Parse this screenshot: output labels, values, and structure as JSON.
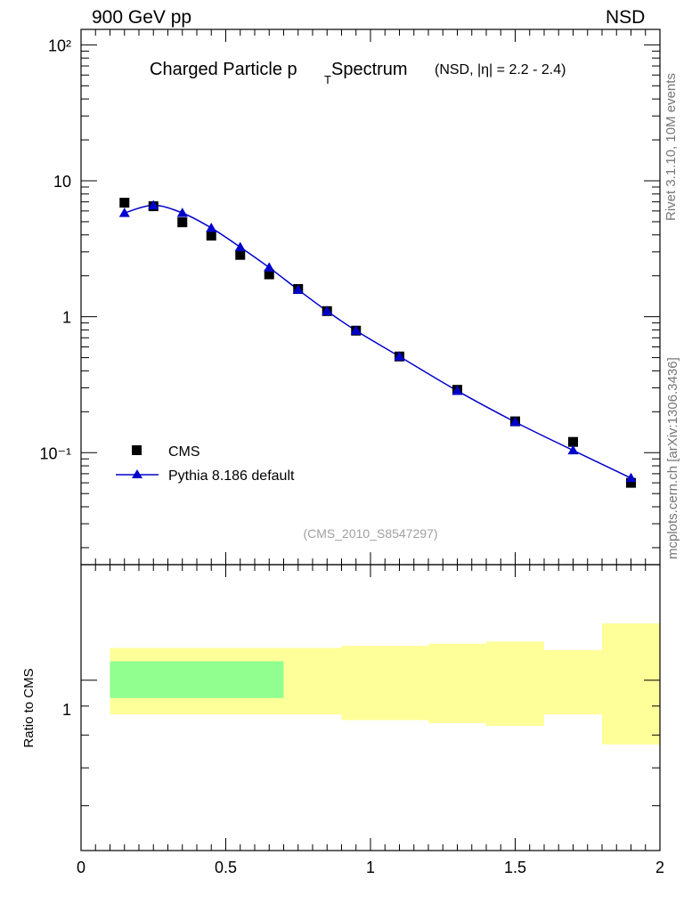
{
  "header": {
    "energy_label": "900 GeV pp",
    "process_label": "NSD"
  },
  "side_labels": {
    "rivet": "Rivet 3.1.10,  10M events",
    "source": "mcplots.cern.ch [arXiv:1306.3436]"
  },
  "colors": {
    "data": "#000000",
    "mc": "#0000cc",
    "band_mc": "#90ff90",
    "band_data": "#ffff99"
  },
  "chart_data": [
    {
      "type": "scatter",
      "panel": "main",
      "title_main": "Charged Particle p",
      "title_sub": "T",
      "title_main2": " Spectrum",
      "title_extra": "(NSD, |η| = 2.2 - 2.4)",
      "watermark": "(CMS_2010_S8547297)",
      "yscale": "log",
      "xlim": [
        0,
        2
      ],
      "ylim": [
        0.015,
        130
      ],
      "ytick_labels": [
        "10⁻¹",
        "1",
        "10",
        "10²"
      ],
      "legend_position": "bottom-left",
      "series": [
        {
          "name": "CMS",
          "marker": "square",
          "x": [
            0.15,
            0.25,
            0.35,
            0.45,
            0.55,
            0.65,
            0.75,
            0.85,
            0.95,
            1.1,
            1.3,
            1.5,
            1.7,
            1.9
          ],
          "y": [
            6.9,
            6.5,
            4.95,
            3.95,
            2.85,
            2.05,
            1.6,
            1.1,
            0.79,
            0.51,
            0.29,
            0.17,
            0.12,
            0.06
          ]
        },
        {
          "name": "Pythia 8.186 default",
          "marker": "triangle",
          "line": true,
          "x": [
            0.15,
            0.25,
            0.35,
            0.45,
            0.55,
            0.65,
            0.75,
            0.85,
            0.95,
            1.1,
            1.3,
            1.5,
            1.7,
            1.9
          ],
          "y": [
            5.8,
            6.6,
            5.8,
            4.5,
            3.25,
            2.3,
            1.58,
            1.1,
            0.79,
            0.51,
            0.285,
            0.168,
            0.104,
            0.065
          ]
        }
      ]
    },
    {
      "type": "area",
      "panel": "ratio",
      "ylabel": "Ratio to CMS",
      "yscale": "log",
      "xlim": [
        0,
        2
      ],
      "ylim": [
        0.5,
        1.6
      ],
      "ytick_labels": [
        "1"
      ],
      "xtick_labels": [
        "0",
        "0.5",
        "1",
        "1.5",
        "2"
      ],
      "mc_band": {
        "bins": [
          [
            0.1,
            0.7
          ]
        ],
        "low": [
          0.93
        ],
        "high": [
          1.08
        ]
      },
      "data_band": {
        "bins": [
          [
            0.1,
            0.2
          ],
          [
            0.2,
            0.3
          ],
          [
            0.3,
            0.4
          ],
          [
            0.4,
            0.5
          ],
          [
            0.5,
            0.6
          ],
          [
            0.6,
            0.7
          ],
          [
            0.7,
            0.8
          ],
          [
            0.8,
            0.9
          ],
          [
            0.9,
            1.0
          ],
          [
            1.0,
            1.2
          ],
          [
            1.2,
            1.4
          ],
          [
            1.4,
            1.6
          ],
          [
            1.6,
            1.8
          ],
          [
            1.8,
            2.0
          ]
        ],
        "low": [
          0.87,
          0.87,
          0.87,
          0.87,
          0.87,
          0.87,
          0.87,
          0.87,
          0.85,
          0.85,
          0.84,
          0.83,
          0.87,
          0.77
        ],
        "high": [
          1.14,
          1.14,
          1.14,
          1.14,
          1.14,
          1.14,
          1.14,
          1.14,
          1.15,
          1.15,
          1.16,
          1.17,
          1.13,
          1.26
        ]
      }
    }
  ]
}
